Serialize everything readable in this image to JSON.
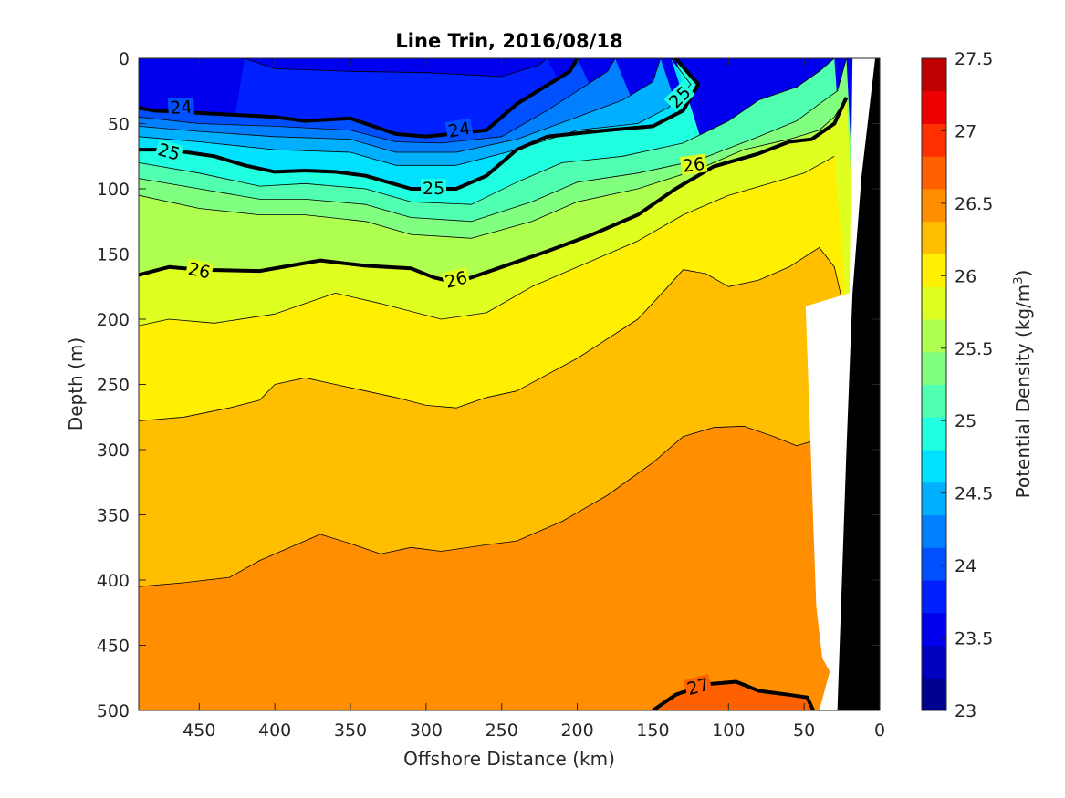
{
  "chart_data": {
    "type": "contour",
    "title": "Line Trin, 2016/08/18",
    "xlabel": "Offshore Distance (km)",
    "ylabel": "Depth (m)",
    "colorbar_label": "Potential Density (kg/m",
    "colorbar_label_sup": "3",
    "colorbar_label_end": ")",
    "xlim": [
      490,
      0
    ],
    "ylim": [
      0,
      500
    ],
    "x_reversed": true,
    "y_reversed": true,
    "xticks": [
      450,
      400,
      350,
      300,
      250,
      200,
      150,
      100,
      50,
      0
    ],
    "yticks": [
      0,
      50,
      100,
      150,
      200,
      250,
      300,
      350,
      400,
      450,
      500
    ],
    "clim": [
      23,
      27.5
    ],
    "contour_step": 0.25,
    "colorbar_ticks": [
      23,
      23.5,
      24,
      24.5,
      25,
      25.5,
      26,
      26.5,
      27,
      27.5
    ],
    "colorbar_colors": [
      "#00008f",
      "#0000bf",
      "#0000ef",
      "#0020ff",
      "#0050ff",
      "#0080ff",
      "#00b0ff",
      "#00e0ff",
      "#20ffdf",
      "#50ffaf",
      "#80ff80",
      "#afff50",
      "#dfff20",
      "#ffef00",
      "#ffbf00",
      "#ff8f00",
      "#ff6000",
      "#ff3000",
      "#ef0000",
      "#bf0000"
    ],
    "isopycnals": [
      {
        "value": 23.75,
        "points": [
          [
            420,
            0
          ],
          [
            400,
            8
          ],
          [
            350,
            10
          ],
          [
            300,
            11
          ],
          [
            250,
            14
          ],
          [
            225,
            5
          ],
          [
            220,
            0
          ]
        ]
      },
      {
        "value": 24.0,
        "points": [
          [
            490,
            38
          ],
          [
            480,
            40
          ],
          [
            400,
            45
          ],
          [
            380,
            48
          ],
          [
            350,
            46
          ],
          [
            320,
            58
          ],
          [
            300,
            60
          ],
          [
            260,
            55
          ],
          [
            240,
            35
          ],
          [
            205,
            10
          ],
          [
            200,
            0
          ]
        ]
      },
      {
        "value": 24.25,
        "points": [
          [
            490,
            45
          ],
          [
            450,
            50
          ],
          [
            400,
            52
          ],
          [
            350,
            55
          ],
          [
            320,
            64
          ],
          [
            290,
            65
          ],
          [
            250,
            60
          ],
          [
            220,
            40
          ],
          [
            200,
            25
          ],
          [
            180,
            10
          ],
          [
            175,
            0
          ]
        ]
      },
      {
        "value": 24.5,
        "points": [
          [
            490,
            52
          ],
          [
            450,
            56
          ],
          [
            400,
            60
          ],
          [
            350,
            62
          ],
          [
            320,
            72
          ],
          [
            280,
            72
          ],
          [
            240,
            62
          ],
          [
            200,
            45
          ],
          [
            170,
            32
          ],
          [
            150,
            18
          ],
          [
            145,
            0
          ]
        ]
      },
      {
        "value": 24.75,
        "points": [
          [
            490,
            60
          ],
          [
            450,
            64
          ],
          [
            400,
            70
          ],
          [
            350,
            72
          ],
          [
            320,
            82
          ],
          [
            280,
            82
          ],
          [
            240,
            70
          ],
          [
            200,
            55
          ],
          [
            160,
            50
          ],
          [
            140,
            38
          ],
          [
            125,
            20
          ],
          [
            138,
            0
          ]
        ]
      },
      {
        "value": 25.0,
        "points": [
          [
            490,
            70
          ],
          [
            470,
            70
          ],
          [
            440,
            75
          ],
          [
            420,
            82
          ],
          [
            400,
            87
          ],
          [
            380,
            86
          ],
          [
            360,
            87
          ],
          [
            340,
            90
          ],
          [
            310,
            100
          ],
          [
            280,
            100
          ],
          [
            260,
            90
          ],
          [
            240,
            70
          ],
          [
            220,
            60
          ],
          [
            180,
            55
          ],
          [
            150,
            52
          ],
          [
            130,
            40
          ],
          [
            120,
            20
          ],
          [
            135,
            0
          ]
        ]
      },
      {
        "value": 25.25,
        "points": [
          [
            490,
            80
          ],
          [
            450,
            88
          ],
          [
            410,
            98
          ],
          [
            380,
            96
          ],
          [
            340,
            100
          ],
          [
            310,
            110
          ],
          [
            270,
            112
          ],
          [
            240,
            95
          ],
          [
            210,
            80
          ],
          [
            170,
            75
          ],
          [
            130,
            65
          ],
          [
            100,
            48
          ],
          [
            80,
            32
          ],
          [
            55,
            22
          ],
          [
            40,
            10
          ],
          [
            30,
            0
          ]
        ]
      },
      {
        "value": 25.5,
        "points": [
          [
            490,
            92
          ],
          [
            450,
            100
          ],
          [
            410,
            108
          ],
          [
            380,
            108
          ],
          [
            340,
            112
          ],
          [
            310,
            122
          ],
          [
            270,
            125
          ],
          [
            230,
            110
          ],
          [
            200,
            95
          ],
          [
            160,
            88
          ],
          [
            120,
            78
          ],
          [
            80,
            60
          ],
          [
            55,
            48
          ],
          [
            40,
            35
          ],
          [
            28,
            25
          ],
          [
            22,
            0
          ]
        ]
      },
      {
        "value": 25.75,
        "points": [
          [
            490,
            105
          ],
          [
            450,
            115
          ],
          [
            410,
            120
          ],
          [
            380,
            120
          ],
          [
            340,
            125
          ],
          [
            310,
            135
          ],
          [
            270,
            138
          ],
          [
            230,
            125
          ],
          [
            200,
            110
          ],
          [
            160,
            100
          ],
          [
            120,
            85
          ],
          [
            90,
            70
          ],
          [
            60,
            62
          ],
          [
            40,
            55
          ],
          [
            30,
            45
          ],
          [
            22,
            30
          ]
        ]
      },
      {
        "value": 26.0,
        "points": [
          [
            490,
            166
          ],
          [
            470,
            160
          ],
          [
            450,
            162
          ],
          [
            410,
            163
          ],
          [
            370,
            155
          ],
          [
            340,
            159
          ],
          [
            310,
            161
          ],
          [
            295,
            168
          ],
          [
            280,
            172
          ],
          [
            250,
            160
          ],
          [
            220,
            148
          ],
          [
            190,
            135
          ],
          [
            160,
            120
          ],
          [
            135,
            100
          ],
          [
            110,
            83
          ],
          [
            80,
            73
          ],
          [
            60,
            64
          ],
          [
            45,
            62
          ],
          [
            30,
            50
          ],
          [
            22,
            30
          ]
        ]
      },
      {
        "value": 26.25,
        "points": [
          [
            490,
            205
          ],
          [
            470,
            200
          ],
          [
            440,
            203
          ],
          [
            400,
            196
          ],
          [
            360,
            180
          ],
          [
            330,
            188
          ],
          [
            290,
            200
          ],
          [
            260,
            195
          ],
          [
            230,
            175
          ],
          [
            200,
            160
          ],
          [
            160,
            140
          ],
          [
            130,
            120
          ],
          [
            100,
            105
          ],
          [
            70,
            95
          ],
          [
            50,
            88
          ],
          [
            30,
            75
          ]
        ]
      },
      {
        "value": 26.5,
        "points": [
          [
            490,
            278
          ],
          [
            460,
            275
          ],
          [
            430,
            268
          ],
          [
            410,
            262
          ],
          [
            400,
            250
          ],
          [
            380,
            245
          ],
          [
            360,
            250
          ],
          [
            340,
            255
          ],
          [
            320,
            260
          ],
          [
            300,
            266
          ],
          [
            280,
            268
          ],
          [
            260,
            260
          ],
          [
            240,
            255
          ],
          [
            200,
            230
          ],
          [
            160,
            200
          ],
          [
            140,
            175
          ],
          [
            130,
            162
          ],
          [
            115,
            165
          ],
          [
            100,
            175
          ],
          [
            80,
            170
          ],
          [
            60,
            160
          ],
          [
            40,
            145
          ],
          [
            30,
            160
          ],
          [
            25,
            185
          ]
        ]
      },
      {
        "value": 26.75,
        "points": [
          [
            490,
            405
          ],
          [
            460,
            402
          ],
          [
            430,
            398
          ],
          [
            410,
            385
          ],
          [
            390,
            375
          ],
          [
            370,
            365
          ],
          [
            350,
            372
          ],
          [
            330,
            380
          ],
          [
            310,
            375
          ],
          [
            290,
            378
          ],
          [
            260,
            373
          ],
          [
            240,
            370
          ],
          [
            210,
            355
          ],
          [
            180,
            335
          ],
          [
            150,
            310
          ],
          [
            130,
            290
          ],
          [
            110,
            283
          ],
          [
            90,
            282
          ],
          [
            70,
            290
          ],
          [
            55,
            297
          ],
          [
            40,
            292
          ],
          [
            32,
            285
          ],
          [
            30,
            300
          ],
          [
            28,
            318
          ]
        ]
      },
      {
        "value": 27.0,
        "points": [
          [
            150,
            500
          ],
          [
            135,
            488
          ],
          [
            115,
            480
          ],
          [
            95,
            478
          ],
          [
            80,
            485
          ],
          [
            60,
            488
          ],
          [
            48,
            490
          ],
          [
            44,
            500
          ]
        ]
      }
    ],
    "contour_labels": [
      {
        "text": "24",
        "x": 462,
        "y": 38,
        "angle": -3
      },
      {
        "text": "24",
        "x": 278,
        "y": 55,
        "angle": -10
      },
      {
        "text": "25",
        "x": 132,
        "y": 30,
        "angle": -45
      },
      {
        "text": "25",
        "x": 470,
        "y": 72,
        "angle": 15
      },
      {
        "text": "25",
        "x": 295,
        "y": 100,
        "angle": 0
      },
      {
        "text": "26",
        "x": 123,
        "y": 82,
        "angle": -8
      },
      {
        "text": "26",
        "x": 450,
        "y": 163,
        "angle": 12
      },
      {
        "text": "26",
        "x": 280,
        "y": 170,
        "angle": -15
      },
      {
        "text": "27",
        "x": 120,
        "y": 482,
        "angle": -15
      }
    ],
    "bottom_profile": [
      [
        0,
        0
      ],
      [
        40,
        500
      ],
      [
        33,
        500
      ],
      [
        32,
        470
      ],
      [
        38,
        460
      ],
      [
        42,
        420
      ],
      [
        50,
        200
      ],
      [
        20,
        180
      ],
      [
        18,
        0
      ]
    ]
  }
}
